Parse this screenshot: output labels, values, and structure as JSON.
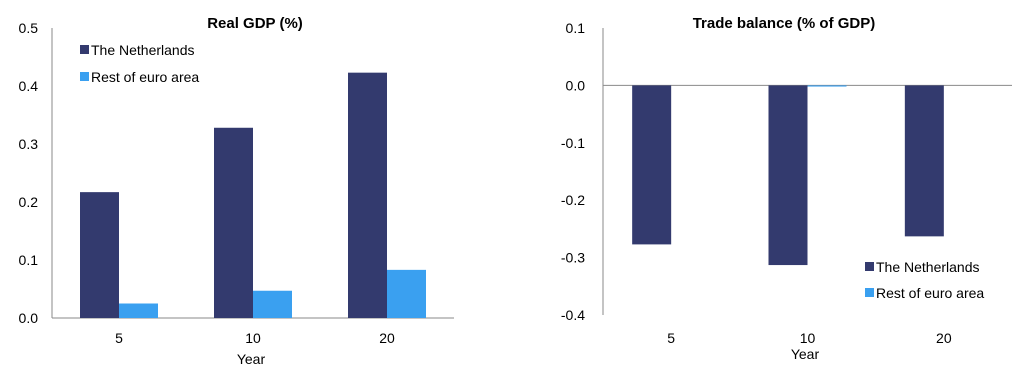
{
  "chart_data": [
    {
      "type": "bar",
      "title": "Real GDP (%)",
      "xlabel": "Year",
      "ylabel": "",
      "categories": [
        "5",
        "10",
        "20"
      ],
      "ylim": [
        0,
        0.5
      ],
      "yticks": [
        "0.0",
        "0.1",
        "0.2",
        "0.3",
        "0.4",
        "0.5"
      ],
      "series": [
        {
          "name": "The Netherlands",
          "values": [
            0.217,
            0.328,
            0.423
          ],
          "color": "#333a6e"
        },
        {
          "name": "Rest of euro area",
          "values": [
            0.025,
            0.047,
            0.083
          ],
          "color": "#3aa0f0"
        }
      ],
      "legend_position": "top-left",
      "grid": false
    },
    {
      "type": "bar",
      "title": "Trade balance (% of GDP)",
      "xlabel": "Year",
      "ylabel": "",
      "categories": [
        "5",
        "10",
        "20"
      ],
      "ylim": [
        -0.4,
        0.1
      ],
      "yticks": [
        "-0.4",
        "-0.3",
        "-0.2",
        "-0.1",
        "0.0",
        "0.1"
      ],
      "series": [
        {
          "name": "The Netherlands",
          "values": [
            -0.277,
            -0.313,
            -0.263
          ],
          "color": "#333a6e"
        },
        {
          "name": "Rest of euro area",
          "values": [
            0.0,
            -0.002,
            0.0
          ],
          "color": "#3aa0f0"
        }
      ],
      "legend_position": "bottom-right",
      "grid": false
    }
  ]
}
